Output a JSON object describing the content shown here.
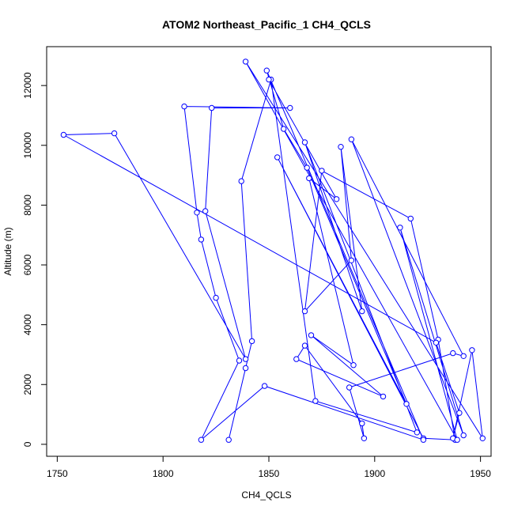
{
  "chart_data": {
    "type": "line",
    "title": "ATOM2 Northeast_Pacific_1 CH4_QCLS",
    "xlabel": "CH4_QCLS",
    "ylabel": "Altitude (m)",
    "xlim": [
      1745,
      1955
    ],
    "ylim": [
      -400,
      13300
    ],
    "xticks": [
      1750,
      1800,
      1850,
      1900,
      1950
    ],
    "yticks": [
      0,
      2000,
      4000,
      6000,
      8000,
      10000,
      12000
    ],
    "grid": false,
    "legend": "none",
    "series": [
      {
        "color": "#0000ff",
        "points": [
          [
            1831,
            150
          ],
          [
            1839,
            2550
          ],
          [
            1842,
            3450
          ],
          [
            1837,
            8800
          ],
          [
            1851,
            12200
          ],
          [
            1872,
            1450
          ],
          [
            1920,
            400
          ],
          [
            1867,
            10100
          ],
          [
            1894,
            4450
          ],
          [
            1884,
            9950
          ],
          [
            1889,
            6150
          ],
          [
            1867,
            4450
          ],
          [
            1875,
            9150
          ],
          [
            1917,
            7550
          ],
          [
            1930,
            3500
          ],
          [
            1938,
            150
          ],
          [
            1923,
            200
          ],
          [
            1854,
            9600
          ],
          [
            1915,
            1350
          ],
          [
            1868,
            9250
          ],
          [
            1857,
            10550
          ],
          [
            1849,
            12500
          ],
          [
            1923,
            150
          ],
          [
            1848,
            1950
          ],
          [
            1818,
            150
          ],
          [
            1836,
            2800
          ],
          [
            1825,
            4900
          ],
          [
            1818,
            6850
          ],
          [
            1816,
            7750
          ],
          [
            1810,
            11300
          ],
          [
            1860,
            11250
          ],
          [
            1823,
            11250
          ],
          [
            1820,
            7800
          ],
          [
            1839,
            2850
          ],
          [
            1777,
            10400
          ],
          [
            1753,
            10350
          ],
          [
            1929,
            3400
          ],
          [
            1940,
            1050
          ],
          [
            1937,
            200
          ],
          [
            1946,
            3150
          ],
          [
            1951,
            200
          ],
          [
            1839,
            12800
          ],
          [
            1939,
            150
          ],
          [
            1912,
            7250
          ],
          [
            1942,
            300
          ],
          [
            1889,
            10200
          ],
          [
            1942,
            2950
          ],
          [
            1937,
            3050
          ],
          [
            1888,
            1900
          ],
          [
            1895,
            200
          ],
          [
            1894,
            700
          ],
          [
            1867,
            3300
          ],
          [
            1863,
            2850
          ],
          [
            1904,
            1600
          ],
          [
            1870,
            3650
          ],
          [
            1890,
            2650
          ],
          [
            1869,
            8900
          ],
          [
            1882,
            8200
          ],
          [
            1850,
            12200
          ]
        ]
      }
    ]
  }
}
